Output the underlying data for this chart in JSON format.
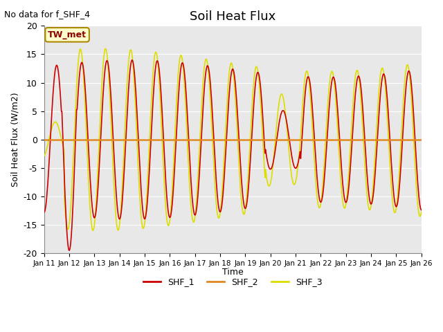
{
  "title": "Soil Heat Flux",
  "note": "No data for f_SHF_4",
  "ylabel": "Soil Heat Flux (W/m2)",
  "xlabel": "Time",
  "ylim": [
    -20,
    20
  ],
  "yticks": [
    -20,
    -15,
    -10,
    -5,
    0,
    5,
    10,
    15,
    20
  ],
  "xtick_labels": [
    "Jan 11",
    "Jan 12",
    "Jan 13",
    "Jan 14",
    "Jan 15",
    "Jan 16",
    "Jan 17",
    "Jan 18",
    "Jan 19",
    "Jan 20",
    "Jan 21",
    "Jan 22",
    "Jan 23",
    "Jan 24",
    "Jan 25",
    "Jan 26"
  ],
  "color_shf1": "#cc0000",
  "color_shf2": "#e08820",
  "color_shf3": "#dddd00",
  "annotation_text": "TW_met",
  "annotation_bg": "#ffffcc",
  "annotation_border": "#aa8800",
  "background_color": "#e8e8e8",
  "legend_labels": [
    "SHF_1",
    "SHF_2",
    "SHF_3"
  ],
  "title_fontsize": 13,
  "note_fontsize": 9,
  "axis_label_fontsize": 9
}
